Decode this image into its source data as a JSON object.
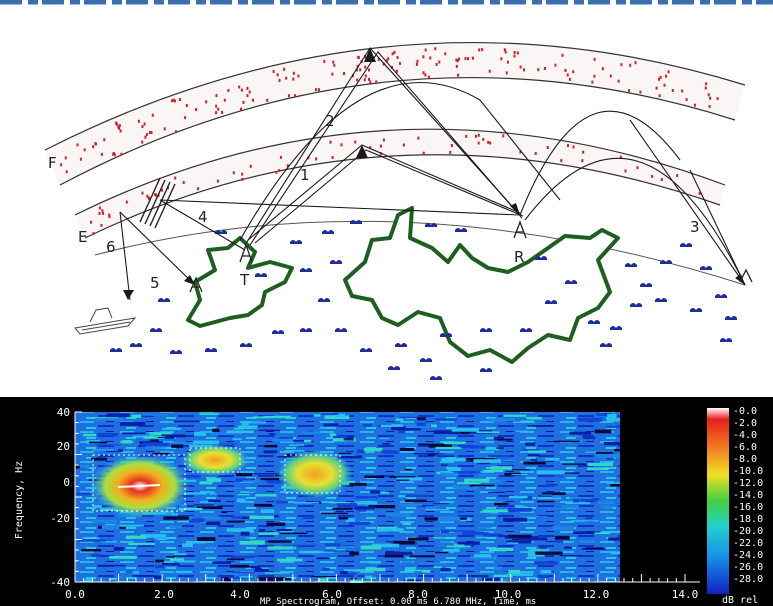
{
  "diagram": {
    "region_labels": {
      "f_layer": "F",
      "e_layer": "E",
      "transmitter": "T",
      "receiver": "R"
    },
    "path_numbers": [
      "1",
      "2",
      "3",
      "4",
      "5",
      "6"
    ]
  },
  "spectrogram": {
    "y_label": "Frequency, Hz",
    "y_ticks": [
      "40",
      "20",
      "0",
      "-20",
      "-40"
    ],
    "x_ticks": [
      "0.0",
      "2.0",
      "4.0",
      "6.0",
      "8.0",
      "10.0",
      "12.0",
      "14.0"
    ],
    "caption": "MP Spectrogram, Offset: 0.00 ms 6.780 MHz, Time, ms",
    "colorbar_ticks": [
      "-0.0",
      "-2.0",
      "-4.0",
      "-6.0",
      "-8.0",
      "-10.0",
      "-12.0",
      "-14.0",
      "-16.0",
      "-18.0",
      "-20.0",
      "-22.0",
      "-24.0",
      "-26.0",
      "-28.0"
    ],
    "colorbar_unit": "dB rel",
    "colors": {
      "background": "#000000",
      "low": "#1030d0",
      "mid": "#18b8e8",
      "high": "#f0e020",
      "peak": "#e83020"
    }
  }
}
